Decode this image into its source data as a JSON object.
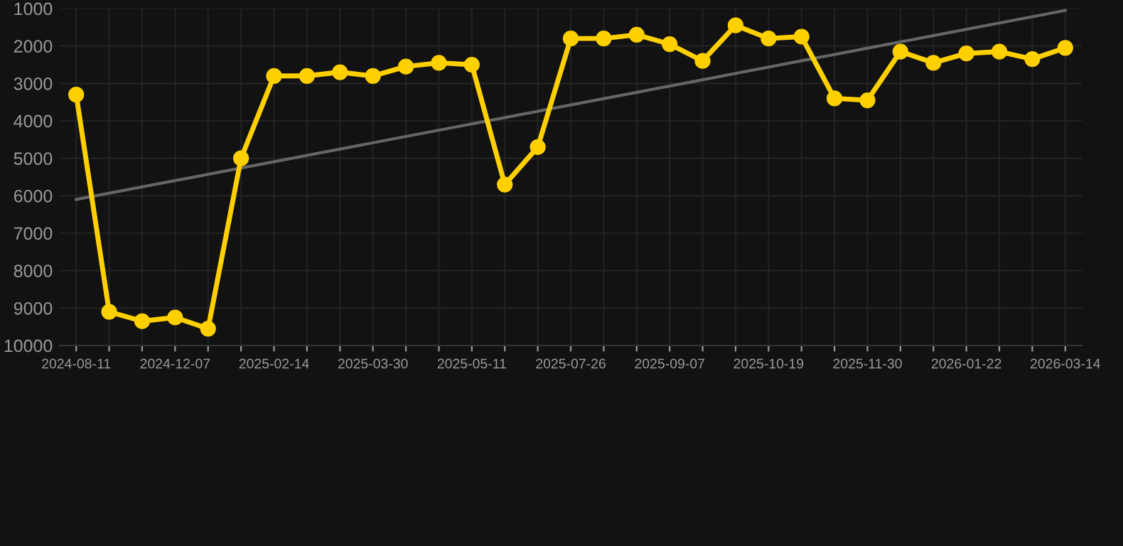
{
  "chart_data": {
    "type": "line",
    "categories": [
      "2024-08-11",
      null,
      null,
      "2024-12-07",
      null,
      null,
      "2025-02-14",
      null,
      null,
      "2025-03-30",
      null,
      null,
      "2025-05-11",
      null,
      null,
      "2025-07-26",
      null,
      null,
      "2025-09-07",
      null,
      null,
      "2025-10-19",
      null,
      null,
      "2025-11-30",
      null,
      null,
      "2026-01-22",
      null,
      null,
      "2026-03-14"
    ],
    "series": [
      {
        "color": "#ffd000",
        "marker": "circle",
        "values": [
          3300,
          9100,
          9350,
          9250,
          9550,
          5000,
          2800,
          2800,
          2700,
          2800,
          2550,
          2450,
          2500,
          5700,
          4700,
          1800,
          1800,
          1700,
          1950,
          2400,
          1450,
          1800,
          1750,
          3400,
          3450,
          2150,
          2450,
          2200,
          2150,
          2350,
          2050
        ]
      },
      {
        "color": "#666666",
        "marker": "none",
        "values": [
          6100,
          null,
          null,
          null,
          null,
          null,
          null,
          null,
          null,
          null,
          null,
          null,
          null,
          null,
          null,
          null,
          null,
          null,
          null,
          null,
          null,
          null,
          null,
          null,
          null,
          null,
          null,
          null,
          null,
          null,
          1050
        ]
      }
    ],
    "ylim": [
      10000,
      1000
    ],
    "yticks": [
      1000,
      2000,
      3000,
      4000,
      5000,
      6000,
      7000,
      8000,
      9000,
      10000
    ],
    "grid": true
  }
}
